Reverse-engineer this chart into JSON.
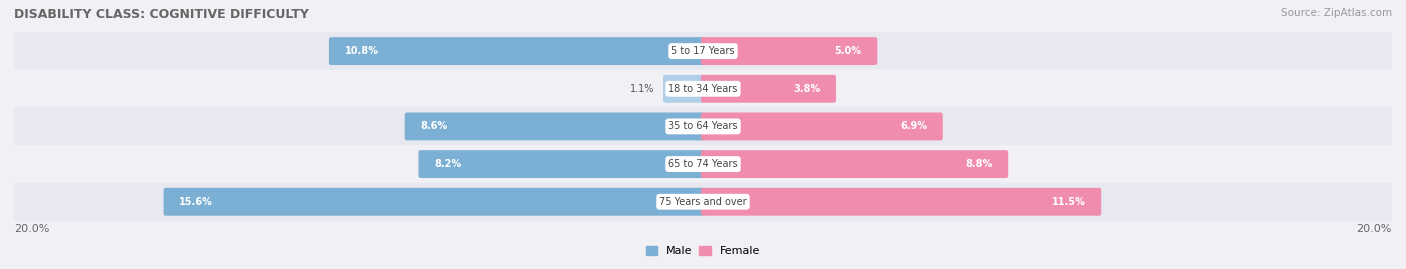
{
  "title": "DISABILITY CLASS: COGNITIVE DIFFICULTY",
  "source": "Source: ZipAtlas.com",
  "categories": [
    "5 to 17 Years",
    "18 to 34 Years",
    "35 to 64 Years",
    "65 to 74 Years",
    "75 Years and over"
  ],
  "male_values": [
    10.8,
    1.1,
    8.6,
    8.2,
    15.6
  ],
  "female_values": [
    5.0,
    3.8,
    6.9,
    8.8,
    11.5
  ],
  "male_colors": [
    "#7bafd4",
    "#b0cfe8",
    "#7bafd4",
    "#7bafd4",
    "#7bafd4"
  ],
  "female_colors": [
    "#f08cad",
    "#f08cad",
    "#f08cad",
    "#f08cad",
    "#f08cad"
  ],
  "max_val": 20.0,
  "row_bg_color_odd": "#e8e8f0",
  "row_bg_color_even": "#f0f0f5",
  "title_color": "#666666",
  "label_color": "#666666",
  "bar_height": 0.62,
  "legend_male": "Male",
  "legend_female": "Female",
  "inside_label_threshold": 3.0
}
